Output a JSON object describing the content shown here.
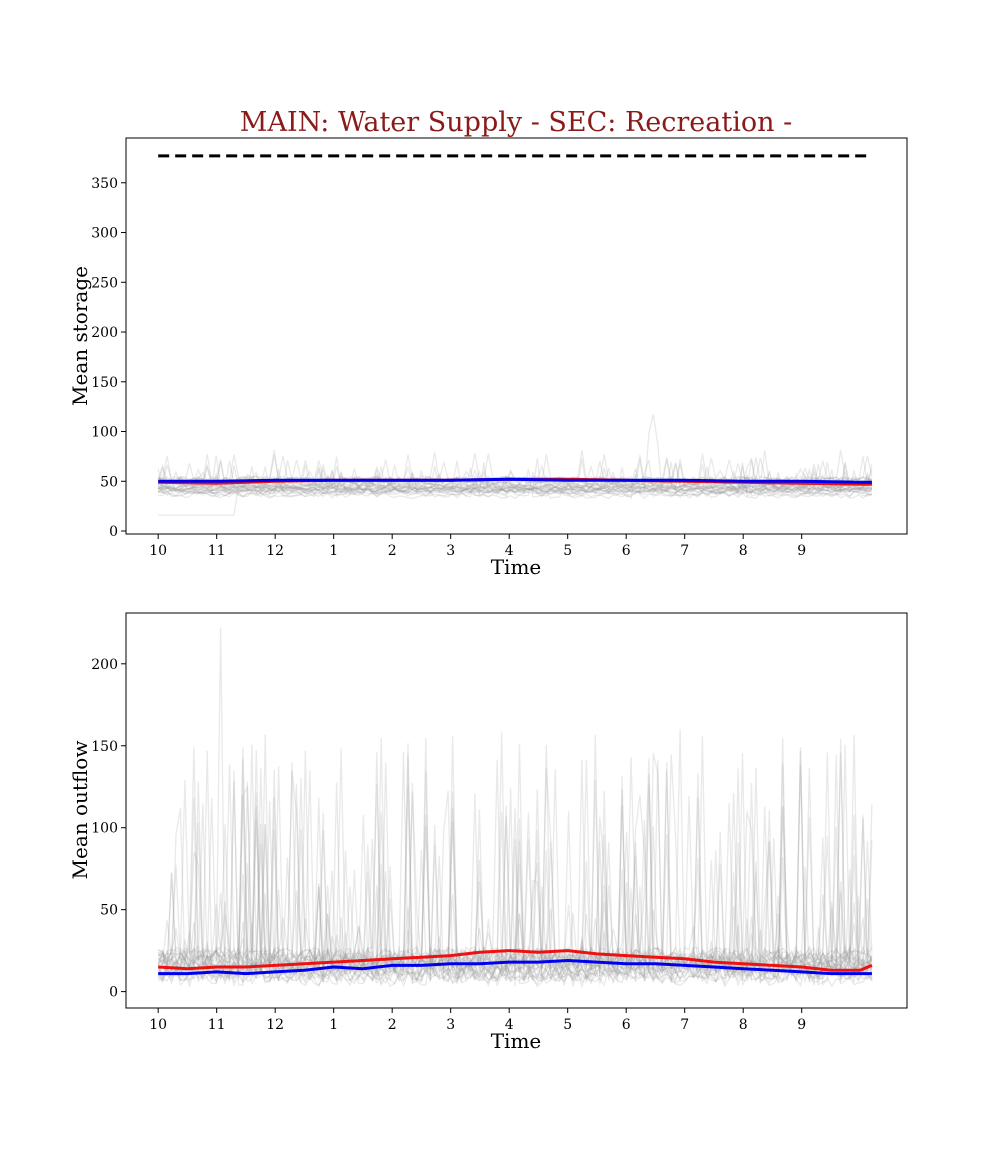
{
  "title": "MAIN: Water Supply - SEC: Recreation -",
  "colors": {
    "title": "#8b1a1a",
    "mean_line": "#0000ee",
    "median_line": "#ee1111",
    "ensemble": "#9a9a9a",
    "capacity": "#000000"
  },
  "chart_data": [
    {
      "type": "line",
      "xlabel": "Time",
      "ylabel": "Mean storage",
      "xticks": [
        "10",
        "11",
        "12",
        "1",
        "2",
        "3",
        "4",
        "5",
        "6",
        "7",
        "8",
        "9"
      ],
      "xlim": [
        -0.55,
        12.8
      ],
      "ylim": [
        -3,
        395
      ],
      "yticks": [
        0,
        50,
        100,
        150,
        200,
        250,
        300,
        350
      ],
      "grid": false,
      "reference_lines": [
        {
          "style": "dashed",
          "color": "#000000",
          "y": 377,
          "x_range": [
            0,
            12.2
          ]
        }
      ],
      "series": [
        {
          "color": "#0000ee",
          "style": "solid",
          "x": [
            0,
            1,
            2,
            3,
            4,
            5,
            6,
            7,
            8,
            9,
            10,
            11,
            12,
            12.2
          ],
          "values": [
            50,
            50,
            51,
            51,
            51,
            51,
            52,
            51,
            51,
            51,
            50,
            50,
            49,
            49
          ]
        },
        {
          "color": "#ee1111",
          "style": "solid",
          "x": [
            0,
            1,
            2,
            3,
            4,
            5,
            6,
            7,
            8,
            9,
            10,
            11,
            12,
            12.2
          ],
          "values": [
            49,
            48,
            50,
            51,
            51,
            51,
            52,
            52,
            51,
            50,
            49,
            48,
            47,
            47
          ]
        }
      ],
      "ensemble": {
        "count": 30,
        "color": "#9a9a9a",
        "typical_range": [
          35,
          60
        ],
        "peak": 123
      }
    },
    {
      "type": "line",
      "xlabel": "Time",
      "ylabel": "Mean outflow",
      "xticks": [
        "10",
        "11",
        "12",
        "1",
        "2",
        "3",
        "4",
        "5",
        "6",
        "7",
        "8",
        "9"
      ],
      "xlim": [
        -0.55,
        12.8
      ],
      "ylim": [
        -10,
        231
      ],
      "yticks": [
        0,
        50,
        100,
        150,
        200
      ],
      "grid": false,
      "series": [
        {
          "color": "#0000ee",
          "style": "solid",
          "x": [
            0,
            0.5,
            1,
            1.5,
            2,
            2.5,
            3,
            3.5,
            4,
            4.5,
            5,
            5.5,
            6,
            6.5,
            7,
            7.5,
            8,
            8.5,
            9,
            9.5,
            10,
            10.5,
            11,
            11.5,
            12,
            12.2
          ],
          "values": [
            11,
            11,
            12,
            11,
            12,
            13,
            15,
            14,
            16,
            16,
            17,
            17,
            18,
            18,
            19,
            18,
            17,
            17,
            16,
            15,
            14,
            13,
            12,
            11,
            11,
            11
          ]
        },
        {
          "color": "#ee1111",
          "style": "solid",
          "x": [
            0,
            0.5,
            1,
            1.5,
            2,
            2.5,
            3,
            3.5,
            4,
            4.5,
            5,
            5.5,
            6,
            6.5,
            7,
            7.5,
            8,
            8.5,
            9,
            9.5,
            10,
            10.5,
            11,
            11.5,
            12,
            12.2
          ],
          "values": [
            15,
            14,
            15,
            15,
            16,
            17,
            18,
            19,
            20,
            21,
            22,
            24,
            25,
            24,
            25,
            23,
            22,
            21,
            20,
            18,
            17,
            16,
            15,
            13,
            13,
            16
          ]
        }
      ],
      "ensemble": {
        "count": 30,
        "color": "#9a9a9a",
        "typical_range": [
          3,
          60
        ],
        "peak": 222
      }
    }
  ]
}
